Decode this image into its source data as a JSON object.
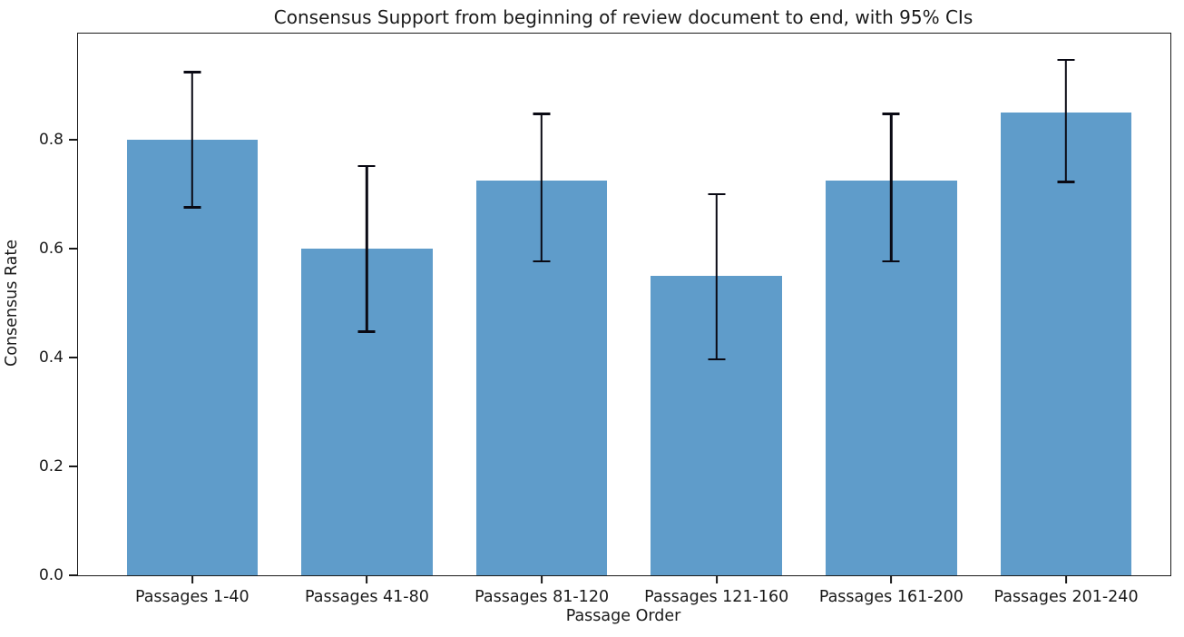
{
  "chart_data": {
    "type": "bar",
    "title": "Consensus Support from beginning of review document to end, with 95% CIs",
    "xlabel": "Passage Order",
    "ylabel": "Consensus Rate",
    "categories": [
      "Passages 1-40",
      "Passages 41-80",
      "Passages 81-120",
      "Passages 121-160",
      "Passages 161-200",
      "Passages 201-240"
    ],
    "values": [
      0.8,
      0.6,
      0.725,
      0.55,
      0.725,
      0.85
    ],
    "error_low": [
      0.676,
      0.448,
      0.577,
      0.397,
      0.577,
      0.723
    ],
    "error_high": [
      0.924,
      0.752,
      0.848,
      0.7,
      0.848,
      0.947
    ],
    "error_description": "95% confidence intervals",
    "ytick_values": [
      0.0,
      0.2,
      0.4,
      0.6,
      0.8
    ],
    "ytick_labels": [
      "0.0",
      "0.2",
      "0.4",
      "0.6",
      "0.8"
    ],
    "ylim": [
      0.0,
      1.0
    ],
    "bar_color": "#5F9CCA",
    "error_color": "#0a0a14",
    "grid": false,
    "legend": null
  }
}
